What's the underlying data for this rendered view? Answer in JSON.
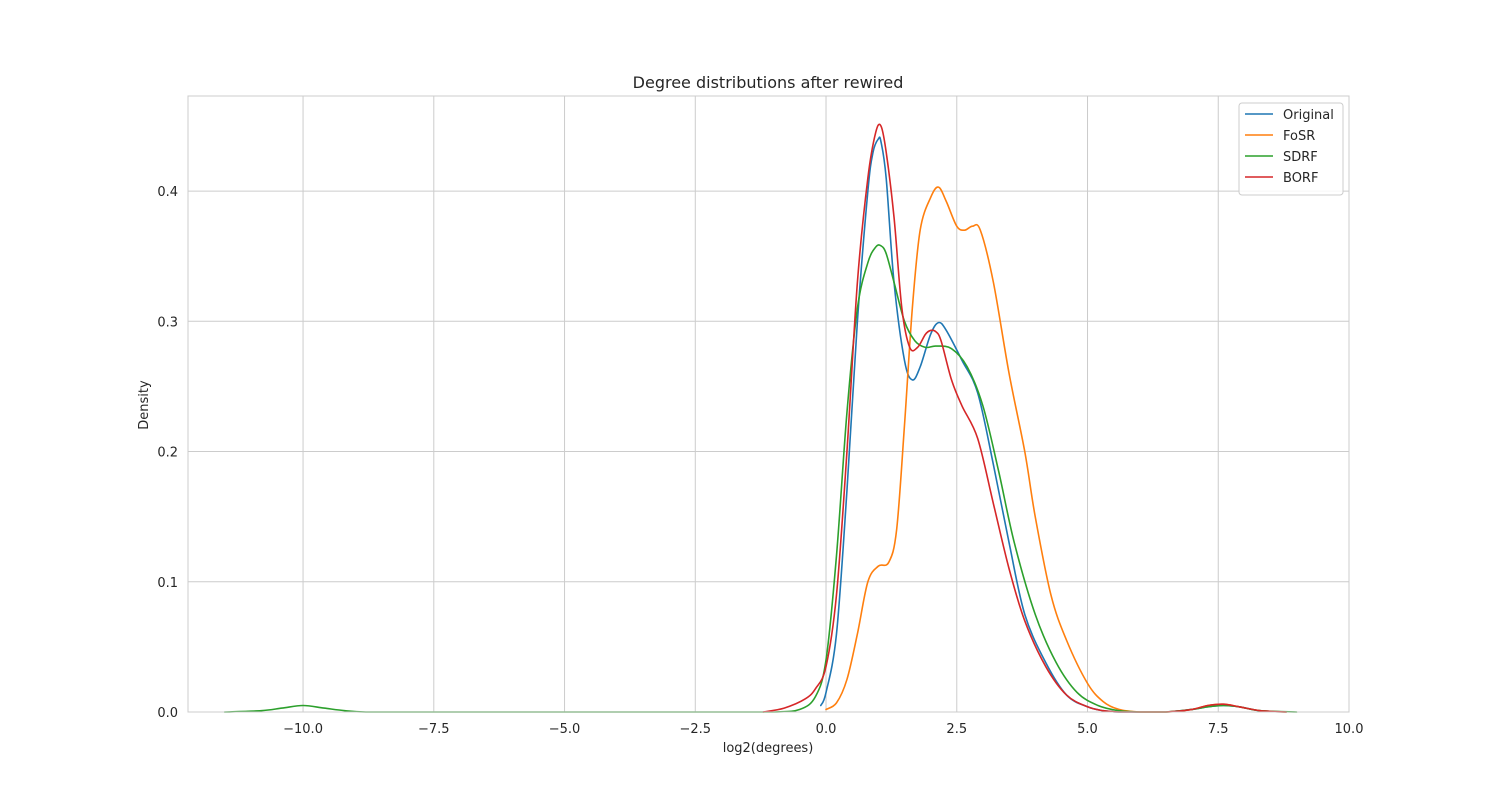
{
  "chart_data": {
    "type": "line",
    "title": "Degree distributions after rewired",
    "xlabel": "log2(degrees)",
    "ylabel": "Density",
    "xlim": [
      -12.2,
      10.0
    ],
    "ylim": [
      0.0,
      0.473
    ],
    "xticks": [
      -10.0,
      -7.5,
      -5.0,
      -2.5,
      0.0,
      2.5,
      5.0,
      7.5,
      10.0
    ],
    "xtick_labels": [
      "−10.0",
      "−7.5",
      "−5.0",
      "−2.5",
      "0.0",
      "2.5",
      "5.0",
      "7.5",
      "10.0"
    ],
    "yticks": [
      0.0,
      0.1,
      0.2,
      0.3,
      0.4
    ],
    "ytick_labels": [
      "0.0",
      "0.1",
      "0.2",
      "0.3",
      "0.4"
    ],
    "grid": true,
    "legend_position": "upper right",
    "series": [
      {
        "name": "Original",
        "color": "#1f77b4",
        "x": [
          -0.1,
          0.0,
          0.2,
          0.4,
          0.6,
          0.8,
          0.9,
          1.0,
          1.05,
          1.15,
          1.3,
          1.5,
          1.65,
          1.8,
          2.0,
          2.15,
          2.3,
          2.6,
          2.9,
          3.2,
          3.5,
          3.8,
          4.2,
          4.6,
          5.0,
          5.3,
          5.6,
          6.0,
          6.5,
          7.0,
          7.3,
          7.6,
          7.9,
          8.3,
          8.8
        ],
        "y": [
          0.005,
          0.015,
          0.06,
          0.17,
          0.3,
          0.4,
          0.43,
          0.44,
          0.438,
          0.41,
          0.33,
          0.27,
          0.255,
          0.265,
          0.29,
          0.299,
          0.293,
          0.27,
          0.245,
          0.19,
          0.13,
          0.075,
          0.038,
          0.013,
          0.004,
          0.001,
          0.0,
          0.0,
          0.0,
          0.002,
          0.004,
          0.005,
          0.004,
          0.001,
          0.0
        ]
      },
      {
        "name": "FoSR",
        "color": "#ff7f0e",
        "x": [
          0.0,
          0.2,
          0.4,
          0.6,
          0.8,
          1.0,
          1.2,
          1.35,
          1.5,
          1.65,
          1.8,
          2.0,
          2.15,
          2.3,
          2.5,
          2.65,
          2.8,
          2.95,
          3.2,
          3.5,
          3.8,
          4.0,
          4.3,
          4.6,
          5.0,
          5.3,
          5.6,
          6.0,
          6.5,
          7.0,
          7.3,
          7.6,
          7.9,
          8.3,
          8.8
        ],
        "y": [
          0.002,
          0.007,
          0.025,
          0.06,
          0.1,
          0.112,
          0.115,
          0.14,
          0.22,
          0.31,
          0.37,
          0.395,
          0.403,
          0.392,
          0.373,
          0.37,
          0.373,
          0.37,
          0.33,
          0.26,
          0.2,
          0.15,
          0.09,
          0.055,
          0.022,
          0.008,
          0.002,
          0.0,
          0.0,
          0.002,
          0.005,
          0.006,
          0.004,
          0.001,
          0.0
        ]
      },
      {
        "name": "SDRF",
        "color": "#2ca02c",
        "x": [
          -11.5,
          -10.8,
          -10.4,
          -10.0,
          -9.6,
          -9.2,
          -8.8,
          -8.0,
          -5.0,
          -2.0,
          -1.0,
          -0.5,
          -0.2,
          0.0,
          0.2,
          0.4,
          0.6,
          0.8,
          0.95,
          1.05,
          1.15,
          1.3,
          1.5,
          1.7,
          1.9,
          2.1,
          2.4,
          2.7,
          3.0,
          3.3,
          3.6,
          4.0,
          4.4,
          4.8,
          5.2,
          5.6,
          6.0,
          6.5,
          7.0,
          7.3,
          7.6,
          7.9,
          8.3,
          9.0
        ],
        "y": [
          0.0,
          0.001,
          0.003,
          0.005,
          0.003,
          0.001,
          0.0,
          0.0,
          0.0,
          0.0,
          0.0,
          0.002,
          0.012,
          0.04,
          0.12,
          0.23,
          0.31,
          0.345,
          0.357,
          0.358,
          0.352,
          0.33,
          0.3,
          0.285,
          0.28,
          0.281,
          0.279,
          0.265,
          0.235,
          0.185,
          0.13,
          0.075,
          0.038,
          0.015,
          0.005,
          0.001,
          0.0,
          0.0,
          0.002,
          0.004,
          0.005,
          0.004,
          0.001,
          0.0
        ]
      },
      {
        "name": "BORF",
        "color": "#d62728",
        "x": [
          -1.2,
          -0.8,
          -0.4,
          -0.2,
          0.0,
          0.2,
          0.4,
          0.6,
          0.8,
          0.95,
          1.05,
          1.15,
          1.3,
          1.45,
          1.6,
          1.75,
          1.9,
          2.0,
          2.1,
          2.2,
          2.4,
          2.6,
          2.9,
          3.2,
          3.5,
          3.8,
          4.2,
          4.6,
          5.0,
          5.3,
          5.6,
          6.0,
          6.5,
          7.0,
          7.3,
          7.6,
          7.9,
          8.3,
          8.8
        ],
        "y": [
          0.0,
          0.003,
          0.01,
          0.018,
          0.035,
          0.09,
          0.2,
          0.33,
          0.41,
          0.445,
          0.45,
          0.43,
          0.38,
          0.31,
          0.28,
          0.28,
          0.29,
          0.293,
          0.292,
          0.285,
          0.255,
          0.235,
          0.21,
          0.16,
          0.11,
          0.07,
          0.035,
          0.013,
          0.004,
          0.001,
          0.0,
          0.0,
          0.0,
          0.002,
          0.005,
          0.006,
          0.004,
          0.001,
          0.0
        ]
      }
    ]
  }
}
